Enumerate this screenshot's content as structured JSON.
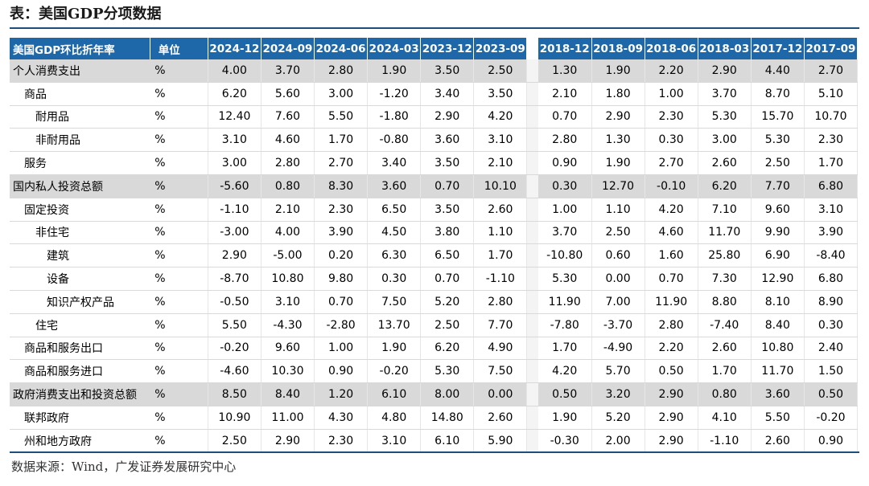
{
  "title": "表：美国GDP分项数据",
  "source": "数据来源：Wind，广发证券发展研究中心",
  "table": {
    "header_name": "美国GDP环比折年率",
    "header_unit": "单位",
    "periods_recent": [
      "2024-12",
      "2024-09",
      "2024-06",
      "2024-03",
      "2023-12",
      "2023-09"
    ],
    "periods_past": [
      "2018-12",
      "2018-09",
      "2018-06",
      "2018-03",
      "2017-12",
      "2017-09"
    ],
    "rows": [
      {
        "name": "个人消费支出",
        "level": 0,
        "unit": "%",
        "recent": [
          "4.00",
          "3.70",
          "2.80",
          "1.90",
          "3.50",
          "2.50"
        ],
        "past": [
          "1.30",
          "1.90",
          "2.20",
          "2.90",
          "4.40",
          "2.70"
        ]
      },
      {
        "name": "商品",
        "level": 1,
        "unit": "%",
        "recent": [
          "6.20",
          "5.60",
          "3.00",
          "-1.20",
          "3.40",
          "3.50"
        ],
        "past": [
          "2.10",
          "1.80",
          "1.00",
          "3.70",
          "8.70",
          "5.10"
        ]
      },
      {
        "name": "耐用品",
        "level": 2,
        "unit": "%",
        "recent": [
          "12.40",
          "7.60",
          "5.50",
          "-1.80",
          "2.90",
          "4.20"
        ],
        "past": [
          "0.70",
          "2.90",
          "2.30",
          "5.30",
          "15.70",
          "10.70"
        ]
      },
      {
        "name": "非耐用品",
        "level": 2,
        "unit": "%",
        "recent": [
          "3.10",
          "4.60",
          "1.70",
          "-0.80",
          "3.60",
          "3.10"
        ],
        "past": [
          "2.80",
          "1.30",
          "0.30",
          "3.00",
          "5.30",
          "2.30"
        ]
      },
      {
        "name": "服务",
        "level": 1,
        "unit": "%",
        "recent": [
          "3.00",
          "2.80",
          "2.70",
          "3.40",
          "3.50",
          "2.10"
        ],
        "past": [
          "0.90",
          "1.90",
          "2.70",
          "2.60",
          "2.50",
          "1.70"
        ]
      },
      {
        "name": "国内私人投资总额",
        "level": 0,
        "unit": "%",
        "recent": [
          "-5.60",
          "0.80",
          "8.30",
          "3.60",
          "0.70",
          "10.10"
        ],
        "past": [
          "0.30",
          "12.70",
          "-0.10",
          "6.20",
          "7.70",
          "6.80"
        ]
      },
      {
        "name": "固定投资",
        "level": 1,
        "unit": "%",
        "recent": [
          "-1.10",
          "2.10",
          "2.30",
          "6.50",
          "3.50",
          "2.60"
        ],
        "past": [
          "1.00",
          "1.10",
          "4.20",
          "7.10",
          "9.60",
          "3.10"
        ]
      },
      {
        "name": "非住宅",
        "level": 2,
        "unit": "%",
        "recent": [
          "-3.00",
          "4.00",
          "3.90",
          "4.50",
          "3.80",
          "1.10"
        ],
        "past": [
          "3.70",
          "2.50",
          "4.60",
          "11.70",
          "9.90",
          "3.90"
        ]
      },
      {
        "name": "建筑",
        "level": 3,
        "unit": "%",
        "recent": [
          "2.90",
          "-5.00",
          "0.20",
          "6.30",
          "6.50",
          "1.70"
        ],
        "past": [
          "-10.80",
          "0.60",
          "1.60",
          "25.80",
          "6.90",
          "-8.40"
        ]
      },
      {
        "name": "设备",
        "level": 3,
        "unit": "%",
        "recent": [
          "-8.70",
          "10.80",
          "9.80",
          "0.30",
          "0.70",
          "-1.10"
        ],
        "past": [
          "5.30",
          "0.00",
          "0.70",
          "7.30",
          "12.90",
          "6.80"
        ]
      },
      {
        "name": "知识产权产品",
        "level": 3,
        "unit": "%",
        "recent": [
          "-0.50",
          "3.10",
          "0.70",
          "7.50",
          "5.20",
          "2.80"
        ],
        "past": [
          "11.90",
          "7.00",
          "11.90",
          "8.80",
          "8.10",
          "8.90"
        ]
      },
      {
        "name": "住宅",
        "level": 2,
        "unit": "%",
        "recent": [
          "5.50",
          "-4.30",
          "-2.80",
          "13.70",
          "2.50",
          "7.70"
        ],
        "past": [
          "-7.80",
          "-3.70",
          "2.80",
          "-7.40",
          "8.40",
          "0.30"
        ]
      },
      {
        "name": "商品和服务出口",
        "level": 1,
        "unit": "%",
        "recent": [
          "-0.20",
          "9.60",
          "1.00",
          "1.90",
          "6.20",
          "4.90"
        ],
        "past": [
          "1.70",
          "-4.90",
          "2.20",
          "2.60",
          "10.80",
          "2.40"
        ]
      },
      {
        "name": "商品和服务进口",
        "level": 1,
        "unit": "%",
        "recent": [
          "-4.60",
          "10.30",
          "0.90",
          "-0.20",
          "5.30",
          "7.50"
        ],
        "past": [
          "4.20",
          "5.70",
          "0.50",
          "1.70",
          "11.70",
          "1.50"
        ]
      },
      {
        "name": "政府消费支出和投资总额",
        "level": 0,
        "unit": "%",
        "recent": [
          "8.50",
          "8.40",
          "1.20",
          "6.10",
          "8.00",
          "0.00"
        ],
        "past": [
          "0.50",
          "3.20",
          "2.90",
          "0.80",
          "3.60",
          "0.50"
        ]
      },
      {
        "name": "联邦政府",
        "level": 1,
        "unit": "%",
        "recent": [
          "10.90",
          "11.00",
          "4.30",
          "4.80",
          "14.80",
          "2.60"
        ],
        "past": [
          "1.90",
          "5.20",
          "2.90",
          "4.10",
          "5.50",
          "-0.20"
        ]
      },
      {
        "name": "州和地方政府",
        "level": 1,
        "unit": "%",
        "recent": [
          "2.50",
          "2.90",
          "2.30",
          "3.10",
          "6.10",
          "5.90"
        ],
        "past": [
          "-0.30",
          "2.00",
          "2.90",
          "-1.10",
          "2.60",
          "0.90"
        ]
      }
    ]
  }
}
